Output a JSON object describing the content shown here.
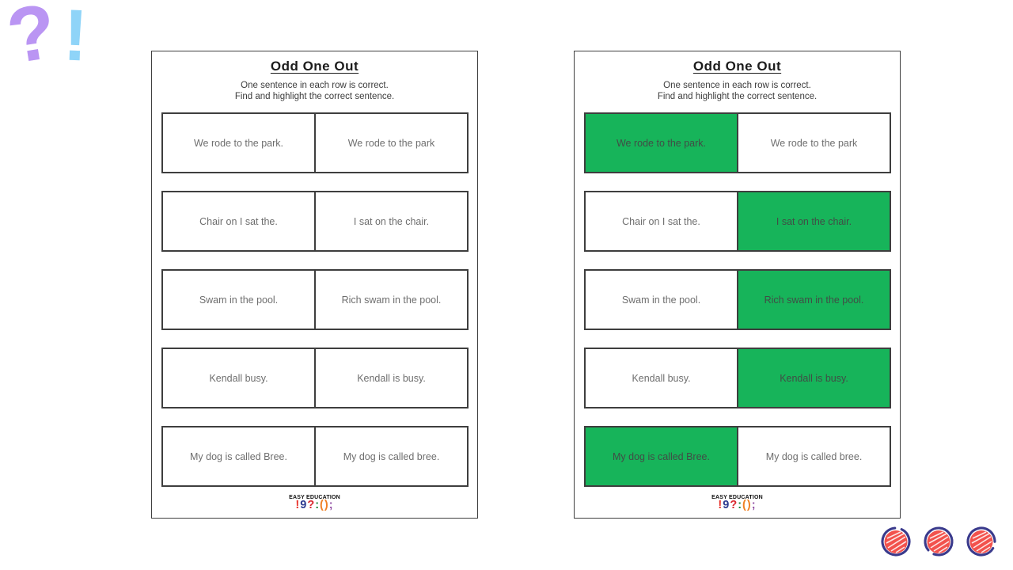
{
  "decor": {
    "question_char": "?",
    "exclamation_char": "!",
    "question_color": "#ba95f3",
    "exclamation_color": "#8fd4f8"
  },
  "worksheets": [
    {
      "title": "Odd One Out",
      "instruction1": "One sentence in each row is correct.",
      "instruction2": "Find and highlight the correct sentence.",
      "brand": "EASY EDUCATION",
      "rows": [
        {
          "left": {
            "text": "We rode to the park.",
            "highlighted": false
          },
          "right": {
            "text": "We rode to the park",
            "highlighted": false
          }
        },
        {
          "left": {
            "text": "Chair on I sat the.",
            "highlighted": false
          },
          "right": {
            "text": "I sat on the chair.",
            "highlighted": false
          }
        },
        {
          "left": {
            "text": "Swam in the pool.",
            "highlighted": false
          },
          "right": {
            "text": "Rich swam in the pool.",
            "highlighted": false
          }
        },
        {
          "left": {
            "text": "Kendall busy.",
            "highlighted": false
          },
          "right": {
            "text": "Kendall is busy.",
            "highlighted": false
          }
        },
        {
          "left": {
            "text": "My dog is called Bree.",
            "highlighted": false
          },
          "right": {
            "text": "My dog is called bree.",
            "highlighted": false
          }
        }
      ]
    },
    {
      "title": "Odd One Out",
      "instruction1": "One sentence in each row is correct.",
      "instruction2": "Find and highlight the correct sentence.",
      "brand": "EASY EDUCATION",
      "rows": [
        {
          "left": {
            "text": "We rode to the park.",
            "highlighted": true
          },
          "right": {
            "text": "We rode to the park",
            "highlighted": false
          }
        },
        {
          "left": {
            "text": "Chair on I sat the.",
            "highlighted": false
          },
          "right": {
            "text": "I sat on the chair.",
            "highlighted": true
          }
        },
        {
          "left": {
            "text": "Swam in the pool.",
            "highlighted": false
          },
          "right": {
            "text": "Rich swam in the pool.",
            "highlighted": true
          }
        },
        {
          "left": {
            "text": "Kendall busy.",
            "highlighted": false
          },
          "right": {
            "text": "Kendall is busy.",
            "highlighted": true
          }
        },
        {
          "left": {
            "text": "My dog is called Bree.",
            "highlighted": true
          },
          "right": {
            "text": "My dog is called bree.",
            "highlighted": false
          }
        }
      ]
    }
  ],
  "logo_glyphs": [
    {
      "char": "!",
      "color": "#e8322b"
    },
    {
      "char": "9",
      "color": "#2d3b90"
    },
    {
      "char": "?",
      "color": "#d9292f"
    },
    {
      "char": ":",
      "color": "#1e8a3c"
    },
    {
      "char": "(",
      "color": "#f08124"
    },
    {
      "char": ")",
      "color": "#f08124"
    },
    {
      "char": ";",
      "color": "#9351a4"
    }
  ],
  "icons": {
    "stamp": "scribble-circle-icon",
    "stamp_count": 3
  },
  "colors": {
    "highlight_green": "#17b45a",
    "page_border": "#3f3f3f",
    "cell_border": "#3e3e3e",
    "cell_text": "#6e6e6e",
    "highlight_text": "#414d46",
    "title_text": "#1c1c1c",
    "stamp_ring": "#3a3a8c",
    "stamp_fill": "#f2524d"
  }
}
